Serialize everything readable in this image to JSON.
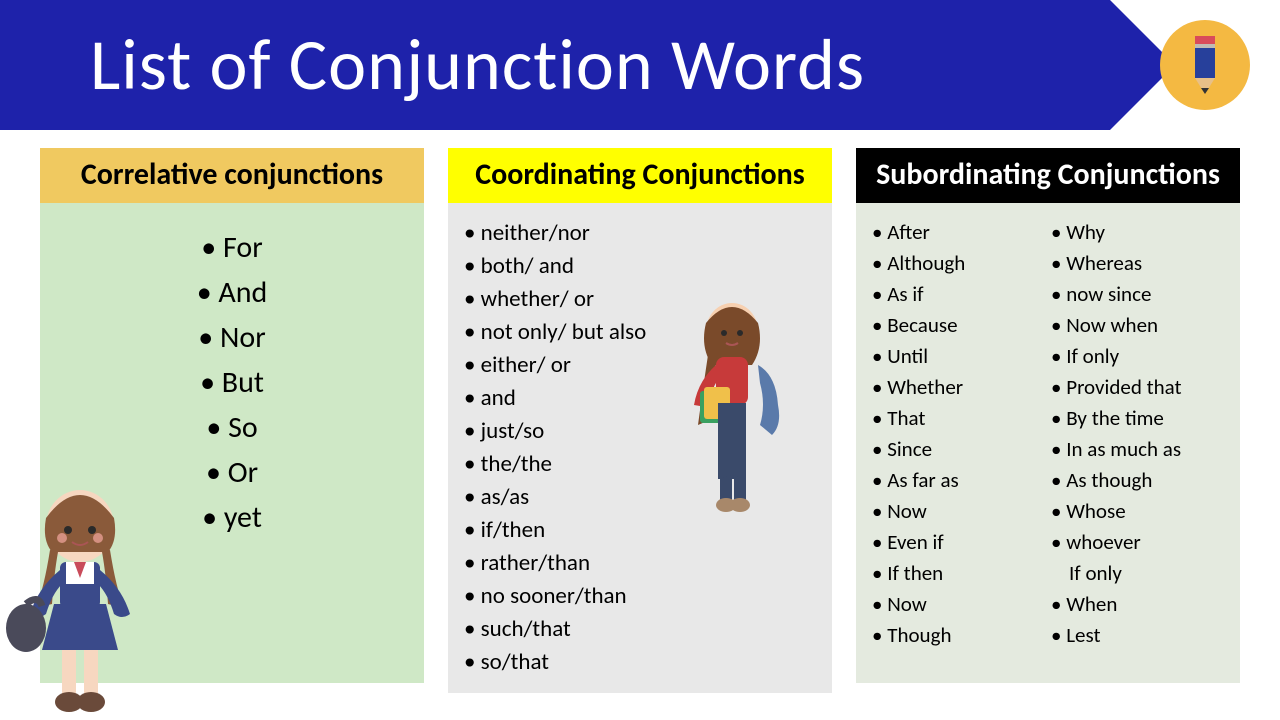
{
  "banner": {
    "title": "List  of  Conjunction Words",
    "bg_color": "#1e22aa",
    "text_color": "#ffffff",
    "badge_bg": "#f4b942"
  },
  "columns": {
    "correlative": {
      "header": "Correlative conjunctions",
      "header_bg": "#f0c960",
      "body_bg": "#cfe8c6",
      "items": [
        "For",
        "And",
        "Nor",
        "But",
        "So",
        "Or",
        "yet"
      ]
    },
    "coordinating": {
      "header": "Coordinating Conjunctions",
      "header_bg": "#ffff00",
      "body_bg": "#e8e8e8",
      "items": [
        "neither/nor",
        "both/ and",
        "whether/ or",
        "not only/ but also",
        "either/ or",
        "and",
        "just/so",
        "the/the",
        "as/as",
        "if/then",
        "rather/than",
        "no sooner/than",
        "such/that",
        "so/that"
      ]
    },
    "subordinating": {
      "header": "Subordinating Conjunctions",
      "header_bg": "#000000",
      "header_fg": "#ffffff",
      "body_bg": "#e4eadf",
      "items_left": [
        "After",
        "Although",
        "As if",
        "Because",
        "Until",
        "Whether",
        "That",
        " Since",
        "As far as",
        "Now",
        "Even if",
        "If then",
        "Now",
        "Though"
      ],
      "items_right": [
        "Why",
        "Whereas",
        "now since",
        "Now when",
        "If only",
        "Provided that",
        "By the time",
        "In as much as",
        " As though",
        "Whose",
        "whoever",
        "If only",
        "When",
        "Lest"
      ],
      "right_nobullet_index": 11
    }
  }
}
